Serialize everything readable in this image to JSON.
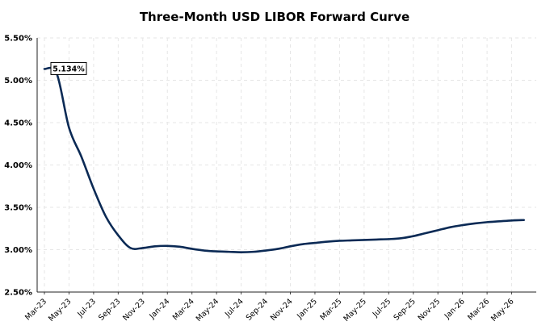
{
  "chart_data": {
    "type": "line",
    "title": "Three-Month USD LIBOR Forward Curve",
    "xlabel": "",
    "ylabel": "",
    "ylim": [
      2.5,
      5.5
    ],
    "yticks": [
      "2.50%",
      "3.00%",
      "3.50%",
      "4.00%",
      "4.50%",
      "5.00%",
      "5.50%"
    ],
    "ytick_values": [
      2.5,
      3.0,
      3.5,
      4.0,
      4.5,
      5.0,
      5.5
    ],
    "xlim": [
      "2023-03",
      "2026-07"
    ],
    "xticks": [
      "Mar-23",
      "May-23",
      "Jul-23",
      "Sep-23",
      "Nov-23",
      "Jan-24",
      "Mar-24",
      "May-24",
      "Jul-24",
      "Sep-24",
      "Nov-24",
      "Jan-25",
      "Mar-25",
      "May-25",
      "Jul-25",
      "Sep-25",
      "Nov-25",
      "Jan-26",
      "Mar-26",
      "May-26"
    ],
    "xtick_dates": [
      "2023-03",
      "2023-05",
      "2023-07",
      "2023-09",
      "2023-11",
      "2024-01",
      "2024-03",
      "2024-05",
      "2024-07",
      "2024-09",
      "2024-11",
      "2025-01",
      "2025-03",
      "2025-05",
      "2025-07",
      "2025-09",
      "2025-11",
      "2026-01",
      "2026-03",
      "2026-05"
    ],
    "grid": true,
    "legend": "none",
    "line_color": "#0b2a55",
    "series": [
      {
        "x": [
          "2023-03",
          "2023-04",
          "2023-05",
          "2023-06",
          "2023-07",
          "2023-08",
          "2023-09",
          "2023-10",
          "2023-11",
          "2023-12",
          "2024-01",
          "2024-02",
          "2024-03",
          "2024-04",
          "2024-05",
          "2024-06",
          "2024-07",
          "2024-08",
          "2024-09",
          "2024-10",
          "2024-11",
          "2024-12",
          "2025-01",
          "2025-02",
          "2025-03",
          "2025-04",
          "2025-05",
          "2025-06",
          "2025-07",
          "2025-08",
          "2025-09",
          "2025-10",
          "2025-11",
          "2025-12",
          "2026-01",
          "2026-02",
          "2026-03",
          "2026-04",
          "2026-05",
          "2026-06"
        ],
        "values": [
          5.134,
          5.08,
          4.44,
          4.1,
          3.72,
          3.39,
          3.17,
          3.02,
          3.02,
          3.04,
          3.045,
          3.035,
          3.01,
          2.99,
          2.98,
          2.975,
          2.97,
          2.975,
          2.99,
          3.01,
          3.04,
          3.065,
          3.08,
          3.095,
          3.105,
          3.11,
          3.115,
          3.12,
          3.125,
          3.135,
          3.16,
          3.195,
          3.23,
          3.265,
          3.29,
          3.31,
          3.325,
          3.335,
          3.345,
          3.35
        ]
      }
    ],
    "annotation": {
      "text": "5.134%",
      "x": "2023-03",
      "y": 5.134
    }
  }
}
